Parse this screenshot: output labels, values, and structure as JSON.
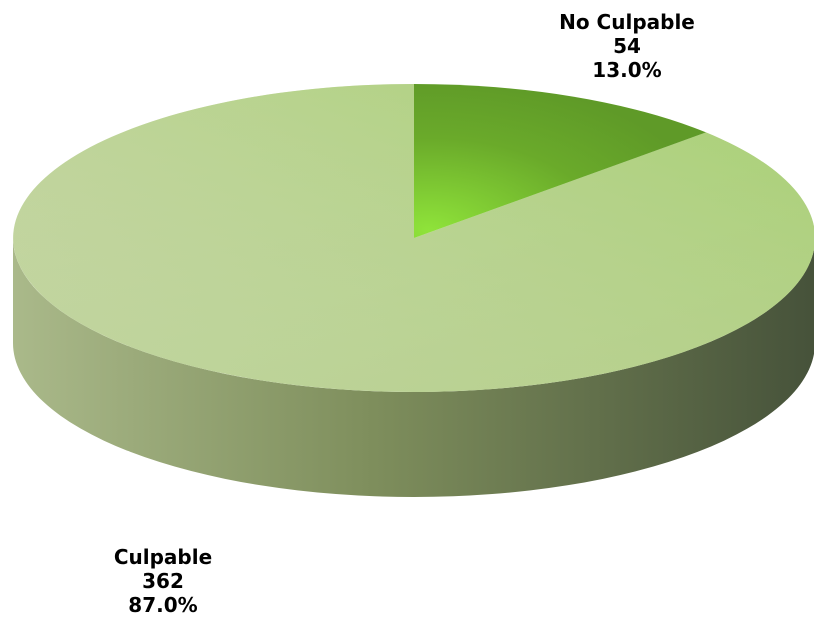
{
  "chart_data": {
    "type": "pie",
    "title": "",
    "slices": [
      {
        "label": "No Culpable",
        "value": 54,
        "percent_label": "13.0%",
        "color": "#6aaa2a"
      },
      {
        "label": "Culpable",
        "value": 362,
        "percent_label": "87.0%",
        "color": "#b6cf8a"
      }
    ],
    "value_labels": [
      "54",
      "362"
    ],
    "legend": "none",
    "style": "3d"
  }
}
